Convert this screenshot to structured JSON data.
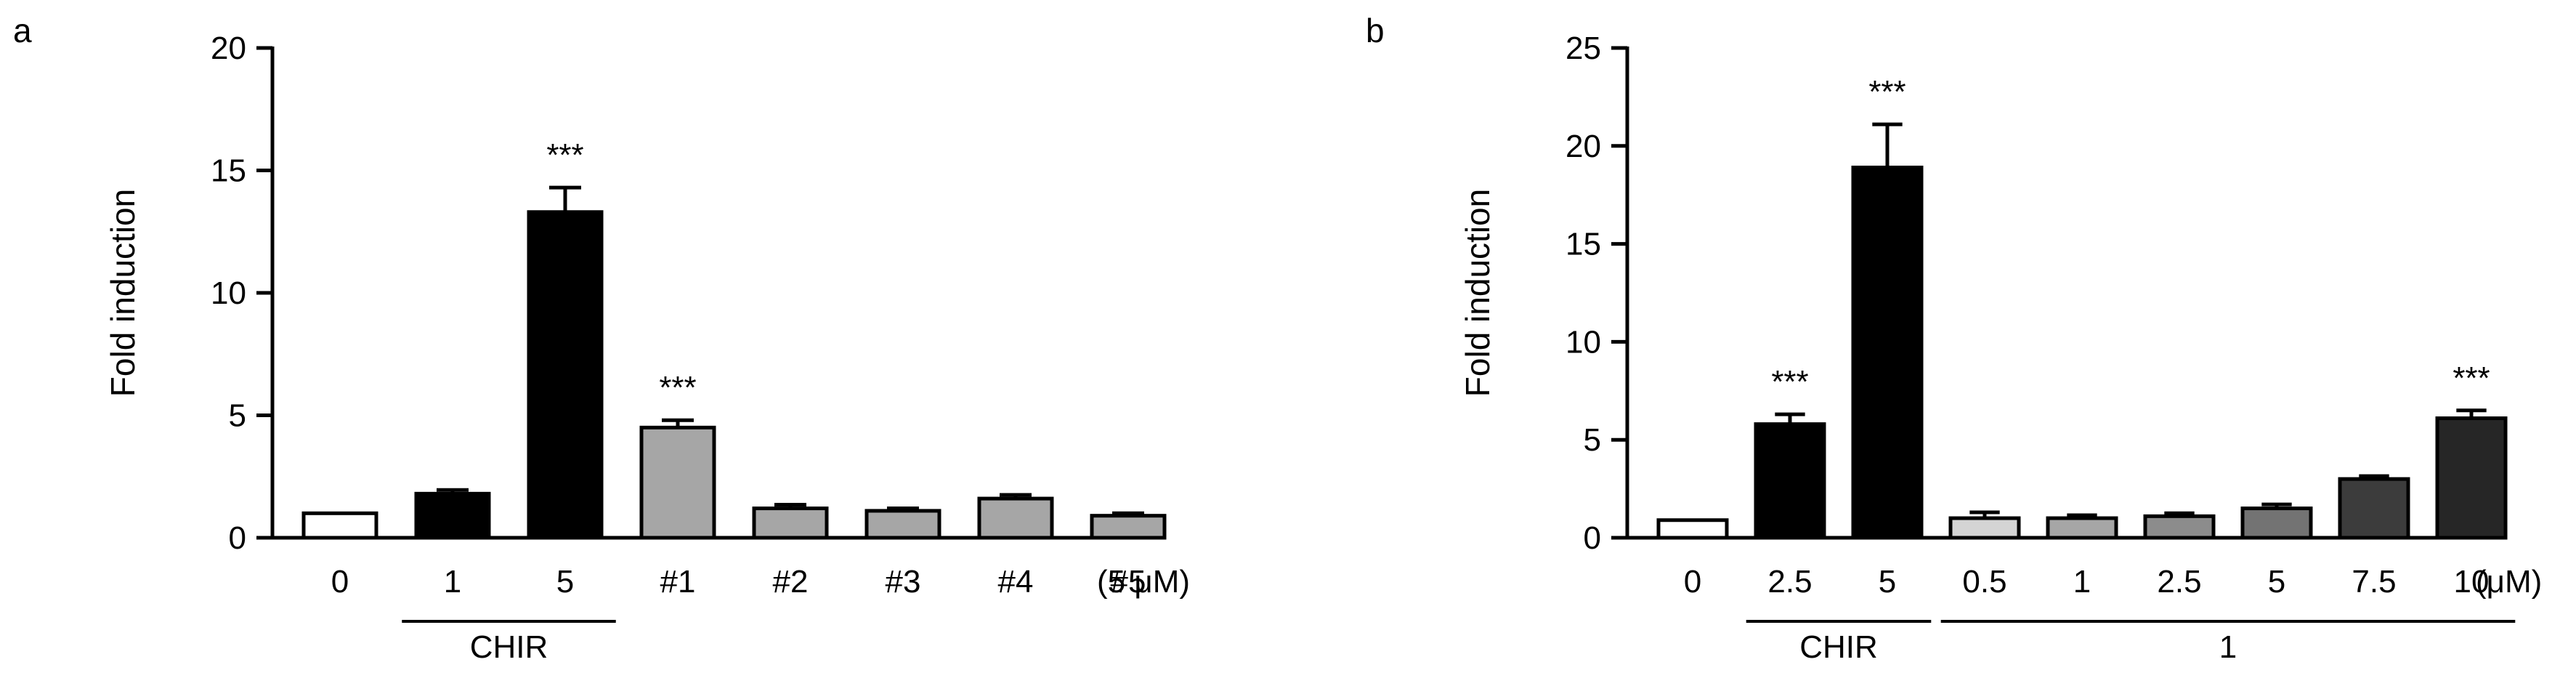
{
  "chart_data": [
    {
      "panel": "a",
      "type": "bar",
      "ylabel": "Fold induction",
      "ylim": [
        0,
        20
      ],
      "yticks": [
        0,
        5,
        10,
        15,
        20
      ],
      "categories": [
        "0",
        "1",
        "5",
        "#1",
        "#2",
        "#3",
        "#4",
        "#5"
      ],
      "values": [
        1.0,
        1.8,
        13.3,
        4.5,
        1.2,
        1.1,
        1.6,
        0.9
      ],
      "errors": [
        0.0,
        0.15,
        1.0,
        0.3,
        0.15,
        0.1,
        0.15,
        0.1
      ],
      "fills": [
        "#ffffff",
        "#000000",
        "#000000",
        "#a6a6a6",
        "#a6a6a6",
        "#a6a6a6",
        "#a6a6a6",
        "#a6a6a6"
      ],
      "annotations": [
        {
          "category_index": 2,
          "text": "***"
        },
        {
          "category_index": 3,
          "text": "***"
        }
      ],
      "unit_label": "(5 μM)",
      "groups": [
        {
          "label": "CHIR",
          "from": 1,
          "to": 2
        }
      ]
    },
    {
      "panel": "b",
      "type": "bar",
      "ylabel": "Fold induction",
      "ylim": [
        0,
        25
      ],
      "yticks": [
        0,
        5,
        10,
        15,
        20,
        25
      ],
      "categories": [
        "0",
        "2.5",
        "5",
        "0.5",
        "1",
        "2.5",
        "5",
        "7.5",
        "10"
      ],
      "values": [
        0.9,
        5.8,
        18.9,
        1.0,
        1.0,
        1.1,
        1.5,
        3.0,
        6.1
      ],
      "errors": [
        0.0,
        0.5,
        2.2,
        0.3,
        0.15,
        0.15,
        0.2,
        0.15,
        0.4
      ],
      "fills": [
        "#ffffff",
        "#000000",
        "#000000",
        "#d4d4d4",
        "#a6a6a6",
        "#8c8c8c",
        "#737373",
        "#3c3c3c",
        "#262626"
      ],
      "annotations": [
        {
          "category_index": 1,
          "text": "***"
        },
        {
          "category_index": 2,
          "text": "***"
        },
        {
          "category_index": 8,
          "text": "***"
        }
      ],
      "unit_label": "(μM)",
      "groups": [
        {
          "label": "CHIR",
          "from": 1,
          "to": 2
        },
        {
          "label": "1",
          "from": 3,
          "to": 8
        }
      ]
    }
  ]
}
